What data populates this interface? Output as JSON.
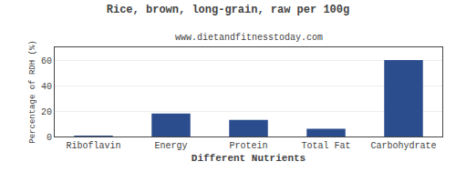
{
  "chart_data": {
    "type": "bar",
    "title": "Rice, brown, long-grain, raw per 100g",
    "subtitle": "www.dietandfitnesstoday.com",
    "xlabel": "Different Nutrients",
    "ylabel": "Percentage of RDH (%)",
    "categories": [
      "Riboflavin",
      "Energy",
      "Protein",
      "Total Fat",
      "Carbohydrate"
    ],
    "values": [
      0.5,
      18,
      13,
      6,
      60
    ],
    "color": "#2b4d8e",
    "ylim": [
      0,
      70
    ],
    "yticks": [
      0,
      20,
      40,
      60
    ],
    "grid": true
  }
}
